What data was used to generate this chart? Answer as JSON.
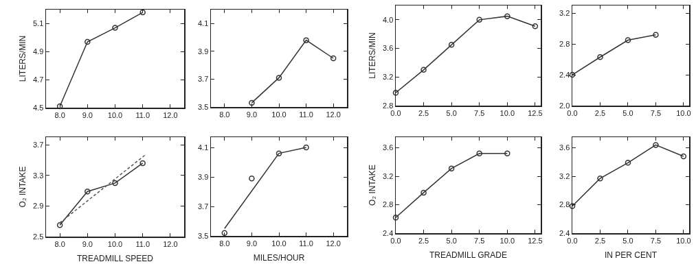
{
  "chart_data": [
    {
      "type": "line",
      "ylabel": "LITERS/MIN",
      "marker": "circle",
      "xlim": [
        7.5,
        12.5
      ],
      "xticks": [
        {
          "value": 8,
          "label": "8.0"
        },
        {
          "value": 9,
          "label": "9.0"
        },
        {
          "value": 10,
          "label": "10.0"
        },
        {
          "value": 11,
          "label": "11.0"
        },
        {
          "value": 12,
          "label": "12.0"
        }
      ],
      "ylim": [
        4.5,
        5.2
      ],
      "yticks": [
        4.5,
        4.7,
        4.9,
        5.1
      ],
      "x": [
        8,
        9,
        10,
        11
      ],
      "series": [
        {
          "color": "#333333",
          "values": [
            4.51,
            4.97,
            5.07,
            5.18
          ]
        }
      ]
    },
    {
      "type": "line",
      "marker": "circle",
      "xlim": [
        7.5,
        12.5
      ],
      "xticks": [
        {
          "value": 8,
          "label": "8.0"
        },
        {
          "value": 9,
          "label": "9.0"
        },
        {
          "value": 10,
          "label": "10.0"
        },
        {
          "value": 11,
          "label": "11.0"
        },
        {
          "value": 12,
          "label": "12.0"
        }
      ],
      "ylim": [
        3.5,
        4.2
      ],
      "yticks": [
        3.5,
        3.7,
        3.9,
        4.1
      ],
      "x": [
        9,
        10,
        11,
        12
      ],
      "series": [
        {
          "color": "#333333",
          "values": [
            3.53,
            3.71,
            3.98,
            3.85
          ]
        }
      ]
    },
    {
      "type": "line",
      "ylabel": "LITERS/MIN",
      "marker": "circle",
      "xlim": [
        0,
        13
      ],
      "xticks": [
        {
          "value": 0,
          "label": "0.0"
        },
        2.5,
        {
          "value": 5,
          "label": "5.0"
        },
        7.5,
        {
          "value": 10,
          "label": "10.0"
        },
        12.5
      ],
      "ylim": [
        2.8,
        4.2
      ],
      "yticks": [
        2.8,
        3.2,
        3.6,
        {
          "value": 4.0,
          "label": "4.0"
        }
      ],
      "x": [
        0,
        2.5,
        5,
        7.5,
        10,
        12.5
      ],
      "series": [
        {
          "color": "#333333",
          "values": [
            2.98,
            3.3,
            3.65,
            4.0,
            4.05,
            3.91
          ]
        }
      ]
    },
    {
      "type": "line",
      "marker": "circle",
      "xlim": [
        0,
        10.5
      ],
      "xticks": [
        {
          "value": 0,
          "label": "0.0"
        },
        2.5,
        {
          "value": 5,
          "label": "5.0"
        },
        7.5,
        {
          "value": 10,
          "label": "10.0"
        }
      ],
      "ylim": [
        2.0,
        3.3
      ],
      "yticks": [
        {
          "value": 2.0,
          "label": "2.0"
        },
        2.4,
        2.8,
        3.2
      ],
      "x": [
        0,
        2.5,
        5,
        7.5
      ],
      "series": [
        {
          "color": "#333333",
          "values": [
            2.4,
            2.63,
            2.85,
            2.92
          ]
        }
      ]
    },
    {
      "type": "line",
      "ylabel": "O₂ INTAKE",
      "xlabel": "TREADMILL SPEED",
      "marker": "circle",
      "xlim": [
        7.5,
        12.5
      ],
      "xticks": [
        {
          "value": 8,
          "label": "8.0"
        },
        {
          "value": 9,
          "label": "9.0"
        },
        {
          "value": 10,
          "label": "10.0"
        },
        {
          "value": 11,
          "label": "11.0"
        },
        {
          "value": 12,
          "label": "12.0"
        }
      ],
      "ylim": [
        2.5,
        3.8
      ],
      "yticks": [
        2.5,
        2.9,
        3.3,
        3.7
      ],
      "x": [
        8,
        9,
        10,
        11
      ],
      "series": [
        {
          "color": "#333333",
          "values": [
            2.65,
            3.09,
            3.2,
            3.46
          ]
        },
        {
          "type": "line",
          "marker": "none",
          "line_style": "dashed",
          "color": "#555555",
          "x": [
            8,
            11.1
          ],
          "values": [
            2.68,
            3.57
          ]
        }
      ]
    },
    {
      "type": "line",
      "xlabel": "MILES/HOUR",
      "marker": "circle",
      "xlim": [
        7.5,
        12.5
      ],
      "xticks": [
        {
          "value": 8,
          "label": "8.0"
        },
        {
          "value": 9,
          "label": "9.0"
        },
        {
          "value": 10,
          "label": "10.0"
        },
        {
          "value": 11,
          "label": "11.0"
        },
        {
          "value": 12,
          "label": "12.0"
        }
      ],
      "ylim": [
        3.5,
        4.17
      ],
      "yticks": [
        3.5,
        3.7,
        3.9,
        4.1
      ],
      "x": [
        8,
        9,
        10,
        11
      ],
      "series": [
        {
          "type": "scatter",
          "color": "#333333",
          "values": [
            3.52,
            3.89,
            4.06,
            4.1
          ]
        },
        {
          "type": "line",
          "marker": "none",
          "color": "#333333",
          "x": [
            8,
            10,
            11
          ],
          "values": [
            3.55,
            4.06,
            4.1
          ]
        }
      ]
    },
    {
      "type": "line",
      "ylabel": "O₂ INTAKE",
      "xlabel": "TREADMILL GRADE",
      "marker": "circle",
      "xlim": [
        0,
        13
      ],
      "xticks": [
        {
          "value": 0,
          "label": "0.0"
        },
        2.5,
        {
          "value": 5,
          "label": "5.0"
        },
        7.5,
        {
          "value": 10,
          "label": "10.0"
        },
        12.5
      ],
      "ylim": [
        2.4,
        3.75
      ],
      "yticks": [
        2.4,
        2.8,
        3.2,
        3.6
      ],
      "x": [
        0,
        2.5,
        5,
        7.5,
        10
      ],
      "series": [
        {
          "color": "#333333",
          "values": [
            2.62,
            2.97,
            3.31,
            3.52,
            3.52
          ]
        }
      ]
    },
    {
      "type": "line",
      "xlabel": "IN PER CENT",
      "marker": "circle",
      "xlim": [
        0,
        10.5
      ],
      "xticks": [
        {
          "value": 0,
          "label": "0.0"
        },
        2.5,
        {
          "value": 5,
          "label": "5.0"
        },
        7.5,
        {
          "value": 10,
          "label": "10.0"
        }
      ],
      "ylim": [
        2.4,
        3.75
      ],
      "yticks": [
        2.4,
        2.8,
        3.2,
        3.6
      ],
      "x": [
        0,
        2.5,
        5,
        7.5,
        10
      ],
      "series": [
        {
          "color": "#333333",
          "values": [
            2.78,
            3.17,
            3.39,
            3.64,
            3.48
          ]
        }
      ]
    }
  ]
}
